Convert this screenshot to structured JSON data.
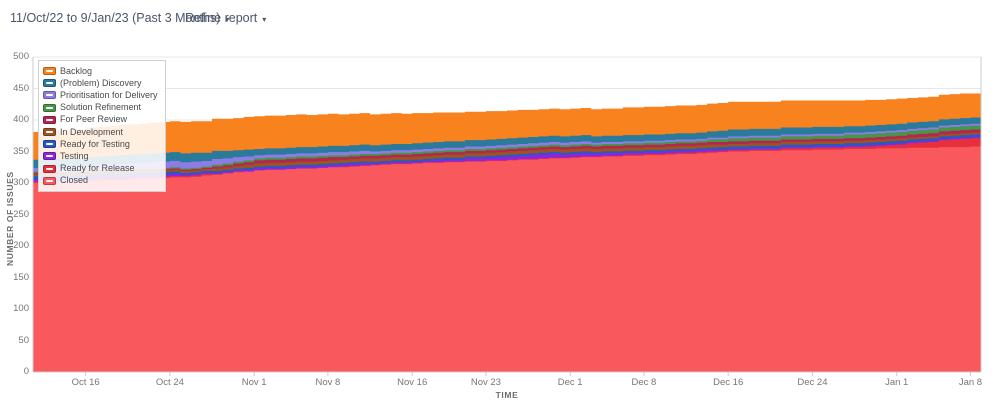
{
  "toolbar": {
    "date_range_label": "11/Oct/22 to 9/Jan/23 (Past 3 Months)",
    "refine_report_label": "Refine report",
    "icons": {
      "caret_down": "▾"
    }
  },
  "chart_data": {
    "type": "area",
    "stacked": true,
    "title": "",
    "xlabel": "TIME",
    "ylabel": "NUMBER OF ISSUES",
    "ylim": [
      0,
      500
    ],
    "yticks": [
      0,
      50,
      100,
      150,
      200,
      250,
      300,
      350,
      400,
      450,
      500
    ],
    "grid": "horizontal",
    "legend_position": "top-left",
    "x_domain_days": [
      0,
      90
    ],
    "x_domain_labels": [
      "Oct 11 2022",
      "Jan 9 2023"
    ],
    "xticks": [
      {
        "label": "Oct 16",
        "day": 5
      },
      {
        "label": "Oct 24",
        "day": 13
      },
      {
        "label": "Nov 1",
        "day": 21
      },
      {
        "label": "Nov 8",
        "day": 28
      },
      {
        "label": "Nov 16",
        "day": 36
      },
      {
        "label": "Nov 23",
        "day": 43
      },
      {
        "label": "Dec 1",
        "day": 51
      },
      {
        "label": "Dec 8",
        "day": 58
      },
      {
        "label": "Dec 16",
        "day": 66
      },
      {
        "label": "Dec 24",
        "day": 74
      },
      {
        "label": "Jan 1",
        "day": 82
      },
      {
        "label": "Jan 8",
        "day": 89
      }
    ],
    "sample_days": [
      0,
      3,
      6,
      9,
      12,
      15,
      18,
      21,
      24,
      27,
      30,
      33,
      36,
      39,
      42,
      45,
      48,
      51,
      54,
      57,
      60,
      63,
      66,
      69,
      72,
      75,
      78,
      81,
      84,
      87,
      90
    ],
    "series": [
      {
        "key": "closed",
        "name": "Closed",
        "color": "#f9585c",
        "values": [
          300,
          301,
          303,
          305,
          308,
          310,
          315,
          320,
          322,
          324,
          326,
          329,
          331,
          333,
          334,
          336,
          338,
          340,
          342,
          343,
          345,
          347,
          350,
          351,
          352,
          353,
          354,
          355,
          356,
          357,
          358
        ]
      },
      {
        "key": "ready-for-release",
        "name": "Ready for Release",
        "color": "#e8303c",
        "values": [
          2,
          2,
          3,
          3,
          2,
          2,
          1,
          0,
          0,
          0,
          1,
          1,
          1,
          1,
          1,
          1,
          1,
          1,
          1,
          2,
          2,
          2,
          2,
          2,
          3,
          3,
          3,
          5,
          8,
          12,
          14
        ]
      },
      {
        "key": "testing",
        "name": "Testing",
        "color": "#8d25e0",
        "values": [
          3,
          3,
          3,
          3,
          3,
          2,
          2,
          3,
          3,
          3,
          3,
          2,
          2,
          3,
          4,
          5,
          6,
          5,
          4,
          3,
          3,
          3,
          2,
          2,
          2,
          2,
          2,
          2,
          2,
          2,
          2
        ]
      },
      {
        "key": "ready-for-testing",
        "name": "Ready for Testing",
        "color": "#2758c4",
        "values": [
          6,
          5,
          5,
          4,
          4,
          3,
          3,
          3,
          3,
          3,
          3,
          3,
          3,
          3,
          3,
          3,
          3,
          3,
          3,
          3,
          3,
          3,
          4,
          4,
          4,
          4,
          4,
          4,
          4,
          4,
          4
        ]
      },
      {
        "key": "in-development",
        "name": "In Development",
        "color": "#9c5424",
        "values": [
          3,
          3,
          3,
          3,
          3,
          3,
          4,
          5,
          5,
          5,
          5,
          5,
          5,
          5,
          5,
          5,
          5,
          5,
          5,
          5,
          5,
          5,
          4,
          4,
          4,
          4,
          4,
          4,
          3,
          3,
          3
        ]
      },
      {
        "key": "for-peer-review",
        "name": "For Peer Review",
        "color": "#b5264f",
        "values": [
          2,
          2,
          2,
          2,
          2,
          2,
          3,
          5,
          5,
          5,
          4,
          4,
          4,
          4,
          4,
          4,
          4,
          4,
          4,
          4,
          4,
          4,
          4,
          4,
          4,
          4,
          4,
          4,
          5,
          5,
          5
        ]
      },
      {
        "key": "solution-refinement",
        "name": "Solution Refinement",
        "color": "#46964a",
        "values": [
          2,
          2,
          2,
          2,
          2,
          2,
          3,
          3,
          3,
          3,
          3,
          3,
          3,
          3,
          3,
          3,
          3,
          3,
          3,
          3,
          3,
          3,
          5,
          5,
          5,
          5,
          6,
          6,
          6,
          6,
          6
        ]
      },
      {
        "key": "prioritisation-for-delivery",
        "name": "Prioritisation for Delivery",
        "color": "#8d7ce5",
        "values": [
          6,
          7,
          8,
          9,
          10,
          10,
          8,
          5,
          5,
          5,
          5,
          4,
          4,
          4,
          4,
          4,
          4,
          4,
          3,
          3,
          3,
          3,
          3,
          3,
          3,
          3,
          3,
          3,
          3,
          3,
          3
        ]
      },
      {
        "key": "problem-discovery",
        "name": "(Problem) Discovery",
        "color": "#2a7a9b",
        "values": [
          13,
          13,
          13,
          14,
          14,
          14,
          12,
          10,
          10,
          10,
          10,
          10,
          10,
          10,
          10,
          10,
          10,
          10,
          10,
          10,
          10,
          10,
          11,
          11,
          11,
          11,
          10,
          10,
          10,
          10,
          10
        ]
      },
      {
        "key": "backlog",
        "name": "Backlog",
        "color": "#f8821d",
        "values": [
          44,
          46,
          47,
          48,
          49,
          50,
          51,
          52,
          52,
          51,
          50,
          49,
          48,
          46,
          45,
          44,
          43,
          43,
          43,
          44,
          44,
          44,
          44,
          43,
          43,
          42,
          41,
          40,
          39,
          39,
          38
        ]
      }
    ],
    "colors": {
      "gridline": "#e7e7e7",
      "axis_line": "#cbcbcb",
      "tick_text": "#767676"
    }
  }
}
